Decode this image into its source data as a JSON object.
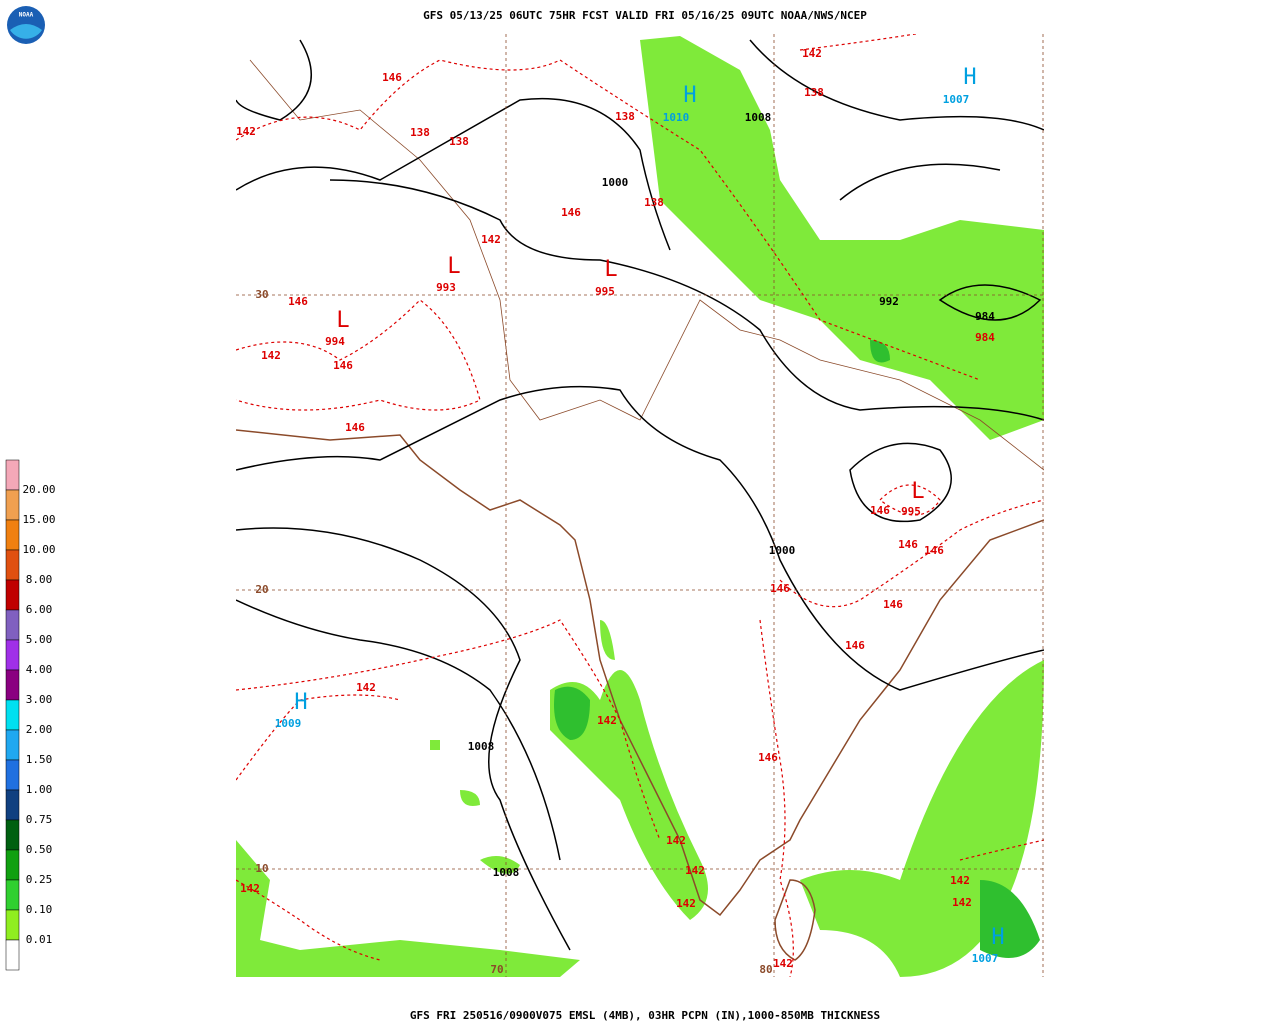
{
  "header": {
    "title": "GFS 05/13/25 06UTC 75HR FCST VALID FRI 05/16/25 09UTC NOAA/NWS/NCEP",
    "logo": "NOAA"
  },
  "footer": {
    "caption": "GFS FRI 250516/0900V075 EMSL (4MB), 03HR PCPN (IN),1000-850MB THICKNESS"
  },
  "legend": {
    "labels": [
      "20.00",
      "15.00",
      "10.00",
      "8.00",
      "6.00",
      "5.00",
      "4.00",
      "3.00",
      "2.00",
      "1.50",
      "1.00",
      "0.75",
      "0.50",
      "0.25",
      "0.10",
      "0.01"
    ]
  },
  "map": {
    "grid_labels": [
      "30",
      "20",
      "10",
      "70",
      "80"
    ],
    "highs": [
      {
        "symbol": "H",
        "value": "1010"
      },
      {
        "symbol": "H",
        "value": "1007"
      },
      {
        "symbol": "H",
        "value": "1009"
      },
      {
        "symbol": "H",
        "value": "1007"
      }
    ],
    "lows": [
      {
        "symbol": "L",
        "value": "993"
      },
      {
        "symbol": "L",
        "value": "995"
      },
      {
        "symbol": "L",
        "value": "994"
      },
      {
        "symbol": "L",
        "value": "995"
      }
    ],
    "isobar_labels": [
      "1008",
      "1000",
      "992",
      "984",
      "1000",
      "1008",
      "1008"
    ],
    "thickness_labels": [
      "146",
      "142",
      "138",
      "138",
      "138",
      "142",
      "138",
      "146",
      "138",
      "142",
      "146",
      "142",
      "146",
      "146",
      "146",
      "146",
      "146",
      "146",
      "146",
      "146",
      "142",
      "142",
      "146",
      "142",
      "142",
      "142",
      "142",
      "142",
      "142",
      "142",
      "984"
    ]
  }
}
